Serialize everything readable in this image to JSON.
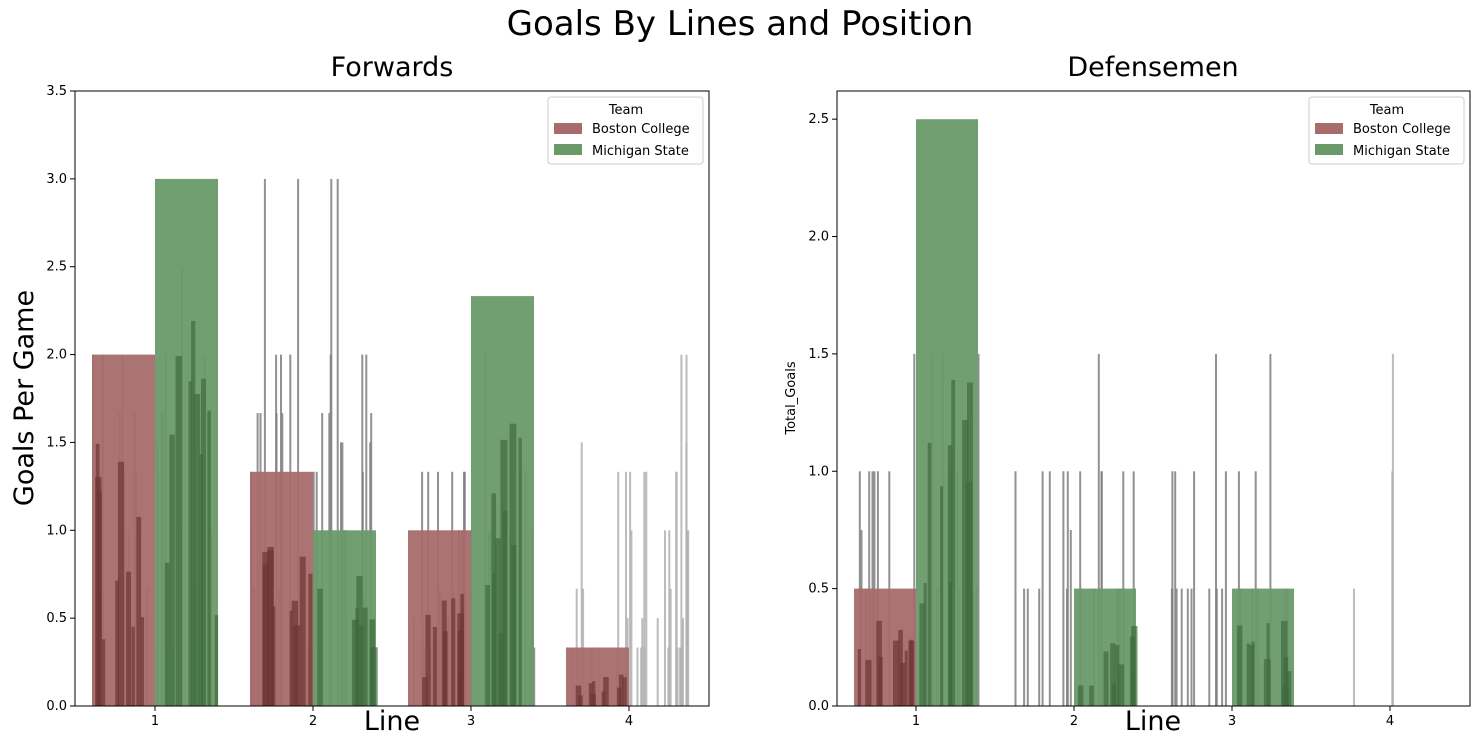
{
  "figure": {
    "suptitle": "Goals By Lines and Position"
  },
  "colors": {
    "boston_college": "#a86c6c",
    "michigan_state": "#6a9a6a",
    "boston_college_strip": "#6e3535",
    "michigan_state_strip": "#3f6b3f",
    "strip_gray": "#7f7f7f",
    "strip_light_gray": "#b0b0b0"
  },
  "chart_data": [
    {
      "type": "bar",
      "title": "Forwards",
      "xlabel": "Line",
      "ylabel": "Goals Per Game",
      "categories": [
        "1",
        "2",
        "3",
        "4"
      ],
      "ylim": [
        0,
        3.5
      ],
      "yticks": [
        "0.0",
        "0.5",
        "1.0",
        "1.5",
        "2.0",
        "2.5",
        "3.0",
        "3.5"
      ],
      "legend": {
        "title": "Team",
        "placement": "top-right"
      },
      "series": [
        {
          "name": "Boston College",
          "values": [
            2.0,
            1.333,
            1.0,
            0.333
          ]
        },
        {
          "name": "Michigan State",
          "values": [
            3.0,
            1.0,
            2.333,
            null
          ]
        }
      ]
    },
    {
      "type": "bar",
      "title": "Defensemen",
      "xlabel": "Line",
      "ylabel": "Total_Goals",
      "categories": [
        "1",
        "2",
        "3",
        "4"
      ],
      "ylim": [
        0,
        2.62
      ],
      "yticks": [
        "0.0",
        "0.5",
        "1.0",
        "1.5",
        "2.0",
        "2.5"
      ],
      "legend": {
        "title": "Team",
        "placement": "top-right"
      },
      "series": [
        {
          "name": "Boston College",
          "values": [
            0.5,
            null,
            null,
            null
          ]
        },
        {
          "name": "Michigan State",
          "values": [
            2.5,
            0.5,
            0.5,
            null
          ]
        }
      ]
    }
  ]
}
